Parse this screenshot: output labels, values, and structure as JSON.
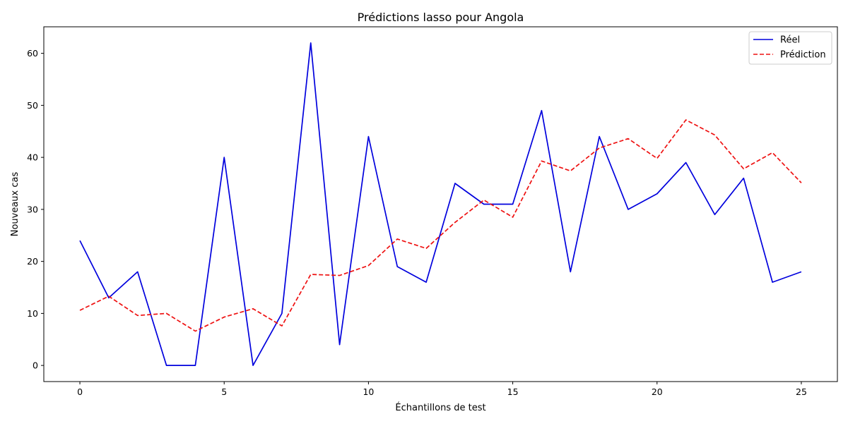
{
  "chart_data": {
    "type": "line",
    "title": "Prédictions lasso pour Angola",
    "xlabel": "Échantillons de test",
    "ylabel": "Nouveaux cas",
    "xlim": [
      -1.25,
      26.25
    ],
    "ylim": [
      -3.1,
      65.1
    ],
    "xticks": [
      0,
      5,
      10,
      15,
      20,
      25
    ],
    "yticks": [
      0,
      10,
      20,
      30,
      40,
      50,
      60
    ],
    "grid": false,
    "legend_position": "top-right",
    "x": [
      0,
      1,
      2,
      3,
      4,
      5,
      6,
      7,
      8,
      9,
      10,
      11,
      12,
      13,
      14,
      15,
      16,
      17,
      18,
      19,
      20,
      21,
      22,
      23,
      24,
      25
    ],
    "series": [
      {
        "name": "Réel",
        "color": "#0000dd",
        "style": "solid",
        "values": [
          24,
          13,
          18,
          0,
          0,
          40,
          0,
          10,
          62,
          4,
          44,
          19,
          16,
          35,
          31,
          31,
          49,
          18,
          44,
          30,
          33,
          39,
          29,
          36,
          16,
          18
        ]
      },
      {
        "name": "Prédiction",
        "color": "#ee1111",
        "style": "dashed",
        "values": [
          10.6,
          13.3,
          9.6,
          10.0,
          6.6,
          9.3,
          10.9,
          7.6,
          17.5,
          17.3,
          19.2,
          24.3,
          22.5,
          27.5,
          31.8,
          28.5,
          39.3,
          37.4,
          41.8,
          43.6,
          39.8,
          47.2,
          44.3,
          37.8,
          40.9,
          35.1
        ]
      }
    ]
  }
}
